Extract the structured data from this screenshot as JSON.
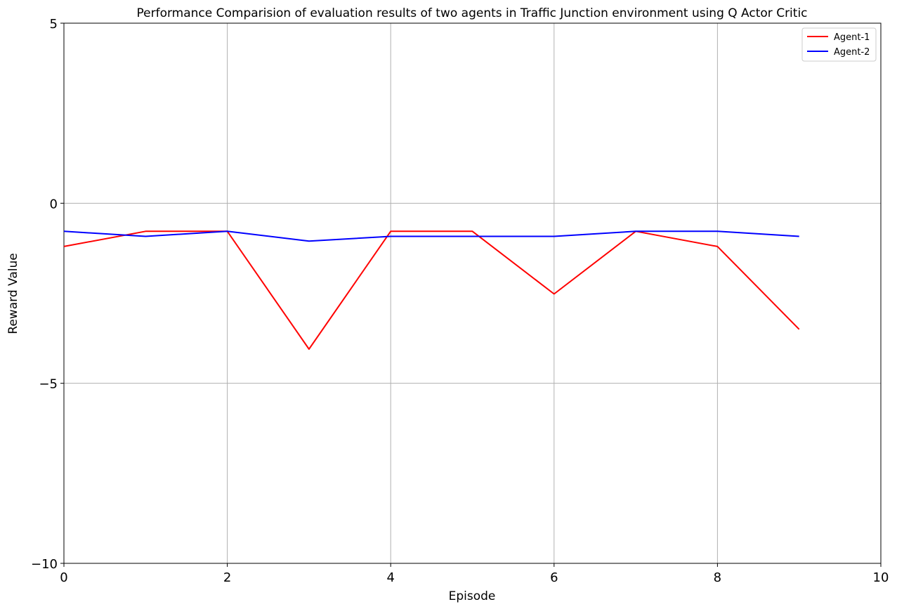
{
  "chart_data": {
    "type": "line",
    "title": "Performance Comparision of evaluation results of two agents in Traffic Junction environment using Q Actor Critic",
    "xlabel": "Episode",
    "ylabel": "Reward Value",
    "xlim": [
      0,
      10
    ],
    "ylim": [
      -10,
      5
    ],
    "xticks": [
      0,
      2,
      4,
      6,
      8,
      10
    ],
    "yticks": [
      5,
      0,
      -5,
      -10
    ],
    "xtick_labels": [
      "0",
      "2",
      "4",
      "6",
      "8",
      "10"
    ],
    "ytick_labels": [
      "5",
      "0",
      "−5",
      "−10"
    ],
    "grid": true,
    "legend_position": "top-right",
    "x": [
      0,
      1,
      2,
      3,
      4,
      5,
      6,
      7,
      8,
      9
    ],
    "series": [
      {
        "name": "Agent-1",
        "color": "#ff0000",
        "values": [
          -1.2,
          -0.78,
          -0.78,
          -4.05,
          -0.78,
          -0.78,
          -2.52,
          -0.78,
          -1.2,
          -3.5
        ]
      },
      {
        "name": "Agent-2",
        "color": "#0000ff",
        "values": [
          -0.78,
          -0.92,
          -0.78,
          -1.05,
          -0.92,
          -0.92,
          -0.92,
          -0.78,
          -0.78,
          -0.92
        ]
      }
    ]
  }
}
